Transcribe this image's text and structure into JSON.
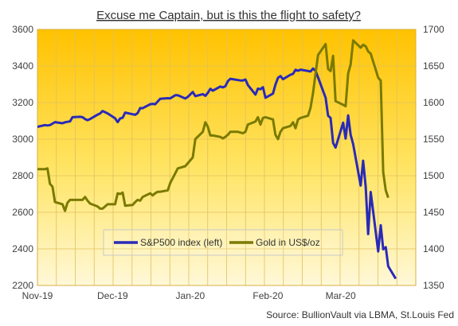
{
  "chart_data": {
    "type": "line",
    "title": "Excuse me Captain, but is this the flight to safety?",
    "source": "Source: BullionVault via LBMA, St.Louis Fed",
    "x_ticks": [
      "Nov-19",
      "Dec-19",
      "Jan-20",
      "Feb-20",
      "Mar-20"
    ],
    "x_range": [
      "2019-11-01",
      "2020-03-31"
    ],
    "y_left": {
      "range": [
        2200,
        3600
      ],
      "ticks": [
        "2200",
        "2400",
        "2600",
        "2800",
        "3000",
        "3200",
        "3400",
        "3600"
      ]
    },
    "y_right": {
      "range": [
        1350,
        1700
      ],
      "ticks": [
        "1350",
        "1400",
        "1450",
        "1500",
        "1550",
        "1600",
        "1650",
        "1700"
      ]
    },
    "grid": true,
    "legend_position": "bottom-center",
    "colors": {
      "sp500": "#2a2ab8",
      "gold": "#7a7a00",
      "bg_top": "#ffc200",
      "bg_bottom": "#fff8d8"
    },
    "series": [
      {
        "name": "S&P500 index (left)",
        "axis": "left",
        "x": [
          "2019-11-01",
          "2019-11-04",
          "2019-11-05",
          "2019-11-06",
          "2019-11-07",
          "2019-11-08",
          "2019-11-11",
          "2019-11-12",
          "2019-11-13",
          "2019-11-14",
          "2019-11-15",
          "2019-11-18",
          "2019-11-19",
          "2019-11-20",
          "2019-11-21",
          "2019-11-22",
          "2019-11-25",
          "2019-11-26",
          "2019-11-27",
          "2019-11-29",
          "2019-12-02",
          "2019-12-03",
          "2019-12-04",
          "2019-12-05",
          "2019-12-06",
          "2019-12-09",
          "2019-12-10",
          "2019-12-11",
          "2019-12-12",
          "2019-12-13",
          "2019-12-16",
          "2019-12-17",
          "2019-12-18",
          "2019-12-19",
          "2019-12-20",
          "2019-12-23",
          "2019-12-24",
          "2019-12-26",
          "2019-12-27",
          "2019-12-30",
          "2019-12-31",
          "2020-01-02",
          "2020-01-03",
          "2020-01-06",
          "2020-01-07",
          "2020-01-08",
          "2020-01-09",
          "2020-01-10",
          "2020-01-13",
          "2020-01-14",
          "2020-01-15",
          "2020-01-16",
          "2020-01-17",
          "2020-01-21",
          "2020-01-22",
          "2020-01-23",
          "2020-01-24",
          "2020-01-27",
          "2020-01-28",
          "2020-01-29",
          "2020-01-30",
          "2020-01-31",
          "2020-02-03",
          "2020-02-04",
          "2020-02-05",
          "2020-02-06",
          "2020-02-07",
          "2020-02-10",
          "2020-02-11",
          "2020-02-12",
          "2020-02-13",
          "2020-02-14",
          "2020-02-18",
          "2020-02-19",
          "2020-02-20",
          "2020-02-21",
          "2020-02-24",
          "2020-02-25",
          "2020-02-26",
          "2020-02-27",
          "2020-02-28",
          "2020-03-02",
          "2020-03-03",
          "2020-03-04",
          "2020-03-05",
          "2020-03-06",
          "2020-03-09",
          "2020-03-10",
          "2020-03-11",
          "2020-03-12",
          "2020-03-13",
          "2020-03-16",
          "2020-03-17",
          "2020-03-18",
          "2020-03-19",
          "2020-03-20",
          "2020-03-23"
        ],
        "values": [
          3067,
          3077,
          3075,
          3077,
          3085,
          3093,
          3087,
          3092,
          3095,
          3097,
          3120,
          3122,
          3120,
          3110,
          3104,
          3110,
          3134,
          3140,
          3154,
          3141,
          3114,
          3093,
          3113,
          3117,
          3145,
          3136,
          3133,
          3142,
          3170,
          3169,
          3191,
          3193,
          3191,
          3206,
          3221,
          3224,
          3223,
          3240,
          3240,
          3222,
          3231,
          3258,
          3235,
          3246,
          3237,
          3253,
          3275,
          3265,
          3288,
          3283,
          3289,
          3317,
          3330,
          3321,
          3321,
          3326,
          3296,
          3244,
          3276,
          3273,
          3284,
          3226,
          3249,
          3298,
          3335,
          3345,
          3328,
          3352,
          3357,
          3379,
          3374,
          3380,
          3370,
          3386,
          3373,
          3338,
          3226,
          3128,
          3116,
          2979,
          2954,
          3090,
          3003,
          3130,
          3024,
          2972,
          2746,
          2882,
          2741,
          2481,
          2711,
          2386,
          2529,
          2398,
          2409,
          2305,
          2237
        ]
      },
      {
        "name": "Gold in US$/oz",
        "axis": "right",
        "x": [
          "2019-11-01",
          "2019-11-04",
          "2019-11-05",
          "2019-11-06",
          "2019-11-07",
          "2019-11-08",
          "2019-11-11",
          "2019-11-12",
          "2019-11-13",
          "2019-11-14",
          "2019-11-15",
          "2019-11-18",
          "2019-11-19",
          "2019-11-20",
          "2019-11-21",
          "2019-11-22",
          "2019-11-25",
          "2019-11-26",
          "2019-11-27",
          "2019-11-29",
          "2019-12-02",
          "2019-12-03",
          "2019-12-04",
          "2019-12-05",
          "2019-12-06",
          "2019-12-09",
          "2019-12-10",
          "2019-12-11",
          "2019-12-12",
          "2019-12-13",
          "2019-12-16",
          "2019-12-17",
          "2019-12-18",
          "2019-12-19",
          "2019-12-20",
          "2019-12-23",
          "2019-12-24",
          "2019-12-27",
          "2019-12-30",
          "2019-12-31",
          "2020-01-02",
          "2020-01-03",
          "2020-01-06",
          "2020-01-07",
          "2020-01-08",
          "2020-01-09",
          "2020-01-10",
          "2020-01-13",
          "2020-01-14",
          "2020-01-15",
          "2020-01-16",
          "2020-01-17",
          "2020-01-20",
          "2020-01-21",
          "2020-01-22",
          "2020-01-23",
          "2020-01-24",
          "2020-01-27",
          "2020-01-28",
          "2020-01-29",
          "2020-01-30",
          "2020-01-31",
          "2020-02-03",
          "2020-02-04",
          "2020-02-05",
          "2020-02-06",
          "2020-02-07",
          "2020-02-10",
          "2020-02-11",
          "2020-02-12",
          "2020-02-13",
          "2020-02-14",
          "2020-02-17",
          "2020-02-18",
          "2020-02-19",
          "2020-02-20",
          "2020-02-21",
          "2020-02-24",
          "2020-02-25",
          "2020-02-26",
          "2020-02-27",
          "2020-02-28",
          "2020-03-02",
          "2020-03-03",
          "2020-03-04",
          "2020-03-05",
          "2020-03-06",
          "2020-03-09",
          "2020-03-10",
          "2020-03-11",
          "2020-03-12",
          "2020-03-13",
          "2020-03-16",
          "2020-03-17",
          "2020-03-18",
          "2020-03-19",
          "2020-03-20"
        ],
        "values": [
          1509,
          1509,
          1510,
          1489,
          1485,
          1464,
          1461,
          1452,
          1463,
          1467,
          1467,
          1467,
          1467,
          1471,
          1466,
          1462,
          1458,
          1455,
          1455,
          1461,
          1461,
          1476,
          1475,
          1477,
          1459,
          1460,
          1464,
          1467,
          1466,
          1471,
          1476,
          1473,
          1476,
          1478,
          1478,
          1480,
          1490,
          1510,
          1513,
          1517,
          1525,
          1550,
          1560,
          1573,
          1567,
          1555,
          1555,
          1553,
          1551,
          1553,
          1556,
          1560,
          1560,
          1559,
          1558,
          1560,
          1570,
          1574,
          1580,
          1570,
          1579,
          1580,
          1577,
          1556,
          1550,
          1560,
          1565,
          1568,
          1573,
          1565,
          1577,
          1579,
          1582,
          1593,
          1613,
          1640,
          1665,
          1680,
          1646,
          1643,
          1664,
          1602,
          1597,
          1595,
          1640,
          1652,
          1685,
          1675,
          1679,
          1677,
          1670,
          1667,
          1634,
          1630,
          1505,
          1480,
          1470
        ]
      }
    ]
  }
}
